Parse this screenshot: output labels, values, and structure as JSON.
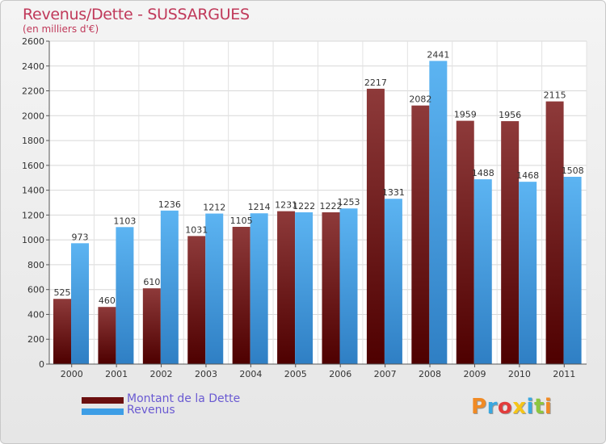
{
  "header": {
    "title": "Revenus/Dette - SUSSARGUES",
    "subtitle": "(en milliers d'€)"
  },
  "colors": {
    "dette": "#7a1c1c",
    "revenus": "#3d9ee6",
    "title": "#c0395a"
  },
  "legend": {
    "items": [
      {
        "label": "Montant de la Dette",
        "color": "#6b0f0f"
      },
      {
        "label": "Revenus",
        "color": "#3d9ee6"
      }
    ]
  },
  "logo": {
    "text": "Proxiti"
  },
  "chart_data": {
    "type": "bar",
    "categories": [
      "2000",
      "2001",
      "2002",
      "2003",
      "2004",
      "2005",
      "2006",
      "2007",
      "2008",
      "2009",
      "2010",
      "2011"
    ],
    "series": [
      {
        "name": "Montant de la Dette",
        "values": [
          525,
          460,
          610,
          1031,
          1105,
          1231,
          1222,
          2217,
          2082,
          1959,
          1956,
          2115
        ]
      },
      {
        "name": "Revenus",
        "values": [
          973,
          1103,
          1236,
          1212,
          1214,
          1222,
          1253,
          1331,
          2441,
          1488,
          1468,
          1508
        ]
      }
    ],
    "ylim": [
      0,
      2600
    ],
    "yticks": [
      0,
      200,
      400,
      600,
      800,
      1000,
      1200,
      1400,
      1600,
      1800,
      2000,
      2200,
      2400,
      2600
    ],
    "grid": true
  }
}
